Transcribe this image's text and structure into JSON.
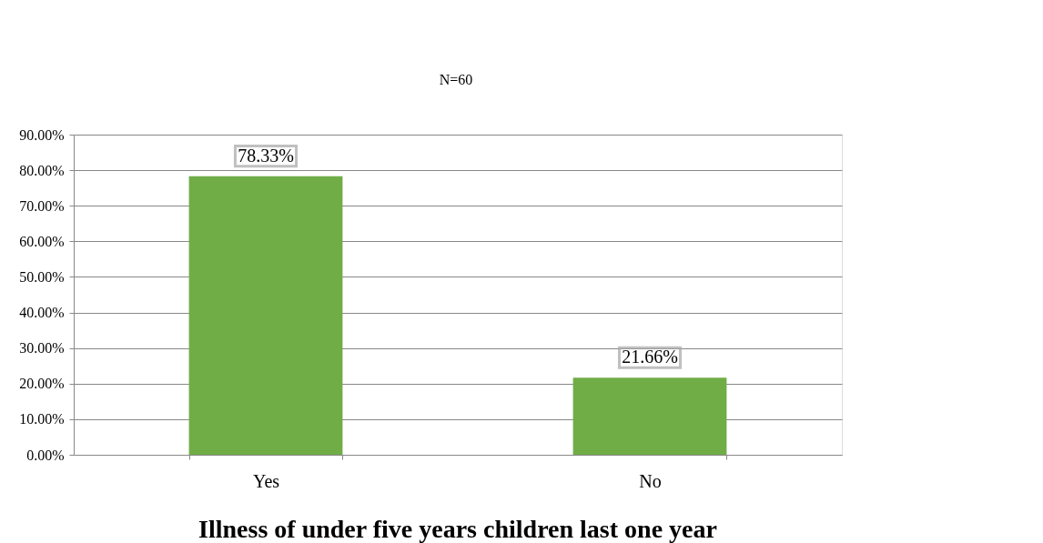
{
  "chart_data": {
    "type": "bar",
    "title": "Illness of under five years children last one year",
    "annotations": [
      "N=60"
    ],
    "categories": [
      "Yes",
      "No"
    ],
    "values": [
      78.33,
      21.66
    ],
    "value_labels": [
      "78.33%",
      "21.66%"
    ],
    "color": "#70ad47",
    "ylim": [
      0,
      90
    ],
    "yticks": [
      {
        "value": 0,
        "label": "0.00%"
      },
      {
        "value": 10,
        "label": "10.00%"
      },
      {
        "value": 20,
        "label": "20.00%"
      },
      {
        "value": 30,
        "label": "30.00%"
      },
      {
        "value": 40,
        "label": "40.00%"
      },
      {
        "value": 50,
        "label": "50.00%"
      },
      {
        "value": 60,
        "label": "60.00%"
      },
      {
        "value": 70,
        "label": "70.00%"
      },
      {
        "value": 80,
        "label": "80.00%"
      },
      {
        "value": 90,
        "label": "90.00%"
      }
    ],
    "grid": "y"
  }
}
